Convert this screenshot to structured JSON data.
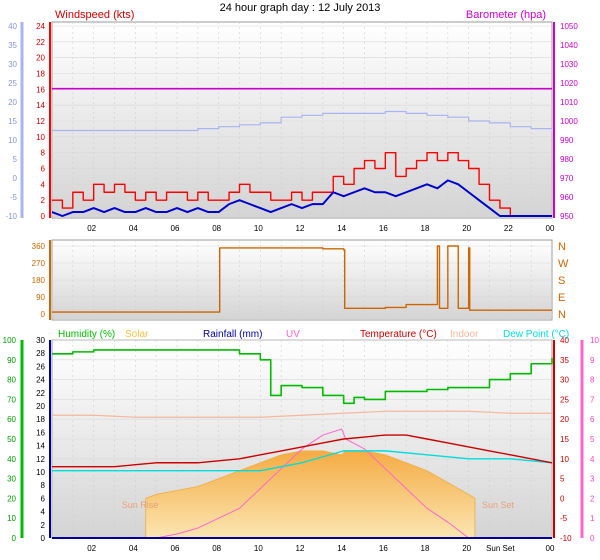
{
  "title": "24 hour graph day : 12 July 2013",
  "x_ticks": [
    "02",
    "04",
    "06",
    "08",
    "10",
    "12",
    "14",
    "16",
    "18",
    "20",
    "22",
    "00"
  ],
  "bottom_x_ticks": [
    "02",
    "04",
    "06",
    "08",
    "10",
    "12",
    "14",
    "16",
    "18",
    "20",
    "Sun Set",
    "00"
  ],
  "colors": {
    "windspeed": "#ff0000",
    "windavg": "#0000cc",
    "barometer": "#cc00cc",
    "baro_line": "#aab4ee",
    "direction": "#cc6600",
    "humidity": "#00bb00",
    "solar": "#f5c242",
    "rainfall": "#000099",
    "uv": "#ff66cc",
    "temperature": "#cc0000",
    "indoor": "#f4b89a",
    "dewpoint": "#00dddd",
    "plot_bg": "#e6e6e6"
  },
  "chart_data": [
    {
      "type": "line",
      "panel": "wind-barometer",
      "left_label": "Windspeed (kts)",
      "right_label": "Barometer (hpa)",
      "outer_left_ticks": [
        "40",
        "35",
        "30",
        "25",
        "20",
        "15",
        "10",
        "5",
        "0",
        "-5",
        "-10"
      ],
      "left_ticks": [
        "24",
        "22",
        "20",
        "18",
        "16",
        "14",
        "12",
        "10",
        "8",
        "6",
        "4",
        "2",
        "0"
      ],
      "right_ticks": [
        "1050",
        "1040",
        "1030",
        "1020",
        "1010",
        "1000",
        "990",
        "980",
        "970",
        "960",
        "950"
      ],
      "series": [
        {
          "key": "wind_gust",
          "x": [
            0,
            0.5,
            1,
            1.5,
            2,
            2.5,
            3,
            3.5,
            4,
            4.5,
            5,
            5.5,
            6,
            6.5,
            7,
            7.5,
            8,
            8.5,
            9,
            9.5,
            10,
            10.5,
            11,
            11.5,
            12,
            12.5,
            13,
            13.5,
            14,
            14.5,
            15,
            15.5,
            16,
            16.5,
            17,
            17.5,
            18,
            18.5,
            19,
            19.5,
            20,
            20.5,
            21,
            21.5,
            22,
            22.5,
            23,
            23.5,
            24
          ],
          "values": [
            2,
            1,
            3,
            2,
            4,
            3,
            4,
            3,
            2,
            3,
            2,
            3,
            3,
            2,
            3,
            2,
            2,
            3,
            4,
            3,
            3,
            2,
            2,
            3,
            2,
            3,
            3,
            5,
            4,
            6,
            7,
            6,
            8,
            5,
            6,
            7,
            8,
            7,
            8,
            7,
            6,
            4,
            2,
            1,
            0,
            0,
            0,
            0,
            0
          ]
        },
        {
          "key": "wind_avg",
          "x": [
            0,
            0.5,
            1,
            1.5,
            2,
            2.5,
            3,
            3.5,
            4,
            4.5,
            5,
            5.5,
            6,
            6.5,
            7,
            7.5,
            8,
            8.5,
            9,
            9.5,
            10,
            10.5,
            11,
            11.5,
            12,
            12.5,
            13,
            13.5,
            14,
            14.5,
            15,
            15.5,
            16,
            16.5,
            17,
            17.5,
            18,
            18.5,
            19,
            19.5,
            20,
            20.5,
            21,
            21.5,
            22,
            22.5,
            23,
            23.5,
            24
          ],
          "values": [
            0.5,
            0,
            0.5,
            0.5,
            1,
            0.5,
            1,
            0.5,
            0.5,
            1,
            0.5,
            0.5,
            1,
            0.5,
            1,
            0.5,
            0.5,
            1.5,
            2,
            1.5,
            1,
            0.5,
            1,
            1.5,
            1,
            1.5,
            1.5,
            3,
            2.5,
            3,
            3.5,
            3,
            3,
            2.5,
            3,
            3.5,
            4,
            3.5,
            4.5,
            4,
            3,
            2,
            1,
            0,
            0,
            0,
            0,
            0,
            0
          ]
        },
        {
          "key": "barometer",
          "x": [
            0,
            24
          ],
          "values": [
            1017,
            1017
          ]
        },
        {
          "key": "baro_trend",
          "x": [
            0,
            2,
            3,
            4,
            5,
            6,
            7,
            8,
            9,
            10,
            11,
            12,
            13,
            14,
            15,
            16,
            17,
            18,
            19,
            20,
            21,
            22,
            23,
            24
          ],
          "values": [
            12.5,
            12.5,
            12.5,
            12.5,
            12.5,
            12.5,
            13,
            13.5,
            14,
            14.5,
            16,
            16.5,
            17,
            17,
            17,
            17.5,
            17,
            16.5,
            16,
            15,
            14.5,
            13.5,
            13,
            12
          ]
        }
      ]
    },
    {
      "type": "line",
      "panel": "wind-direction",
      "left_ticks": [
        "360",
        "270",
        "180",
        "90",
        "0"
      ],
      "right_labels": [
        "N",
        "W",
        "S",
        "E",
        "N"
      ],
      "x": [
        0,
        1,
        2,
        3,
        4,
        5,
        6,
        7,
        8,
        8.05,
        9,
        10,
        11,
        12,
        13,
        14,
        14.05,
        15,
        16,
        17,
        18,
        18.5,
        18.6,
        19,
        19.5,
        20,
        20.05,
        21,
        22,
        23,
        24
      ],
      "values": [
        10,
        10,
        10,
        10,
        10,
        10,
        10,
        10,
        10,
        350,
        350,
        350,
        350,
        350,
        345,
        340,
        30,
        30,
        35,
        50,
        50,
        360,
        30,
        360,
        30,
        350,
        20,
        20,
        20,
        20,
        20
      ]
    },
    {
      "type": "line",
      "panel": "weather",
      "legend": [
        "Humidity (%)",
        "Solar",
        "Rainfall (mm)",
        "UV",
        "Temperature (°C)",
        "Indoor",
        "Dew Point (°C)"
      ],
      "humidity_ticks": [
        "100",
        "90",
        "80",
        "70",
        "60",
        "50",
        "40",
        "30",
        "20",
        "10",
        "0"
      ],
      "rain_ticks": [
        "30",
        "28",
        "26",
        "24",
        "22",
        "20",
        "18",
        "16",
        "14",
        "12",
        "10",
        "8",
        "6",
        "4",
        "2",
        "0"
      ],
      "temp_ticks": [
        "40",
        "35",
        "30",
        "25",
        "20",
        "15",
        "10",
        "5",
        "0",
        "-5",
        "-10"
      ],
      "uv_ticks": [
        "10",
        "9",
        "8",
        "7",
        "6",
        "5",
        "4",
        "3",
        "2",
        "1",
        "0"
      ],
      "annotations": [
        "Sun Rise",
        "Sun Set"
      ],
      "series": [
        {
          "key": "humidity",
          "x": [
            0,
            1,
            2,
            3,
            4,
            5,
            6,
            7,
            8,
            9,
            10,
            10.5,
            11,
            12,
            13,
            14,
            14.5,
            15,
            16,
            17,
            18,
            19,
            20,
            21,
            22,
            23,
            24
          ],
          "values": [
            93,
            94,
            95,
            95,
            95,
            95,
            95,
            95,
            95,
            93,
            90,
            72,
            77,
            76,
            72,
            68,
            71,
            70,
            74,
            74,
            75,
            76,
            76,
            80,
            83,
            88,
            91
          ]
        },
        {
          "key": "temperature",
          "x": [
            0,
            1,
            2,
            3,
            4,
            5,
            6,
            7,
            8,
            9,
            10,
            11,
            12,
            13,
            14,
            15,
            16,
            17,
            18,
            19,
            20,
            21,
            22,
            23,
            24
          ],
          "values": [
            8,
            8,
            8,
            8,
            8.5,
            9,
            9,
            9,
            9.5,
            10,
            11,
            12,
            13,
            14,
            15,
            15.5,
            16,
            16,
            15,
            14,
            13,
            12,
            11,
            10,
            9
          ]
        },
        {
          "key": "indoor",
          "x": [
            0,
            2,
            4,
            6,
            8,
            10,
            12,
            14,
            16,
            18,
            20,
            22,
            24
          ],
          "values": [
            21,
            21,
            20.5,
            20.5,
            20.5,
            20.5,
            21,
            21.5,
            22,
            22,
            22,
            21.5,
            21.5
          ]
        },
        {
          "key": "dewpoint",
          "x": [
            0,
            2,
            4,
            6,
            8,
            10,
            12,
            14,
            16,
            18,
            20,
            22,
            24
          ],
          "values": [
            7,
            7,
            7,
            7,
            7,
            7,
            9,
            12,
            12,
            11,
            10,
            10,
            9
          ]
        },
        {
          "key": "solar",
          "x": [
            4.5,
            5,
            6,
            7,
            8,
            9,
            10,
            11,
            12,
            13,
            13.9,
            14.1,
            15,
            16,
            17,
            18,
            19,
            20,
            20.3
          ],
          "values": [
            0,
            1,
            2,
            3,
            5,
            7,
            9,
            11,
            12,
            12,
            11,
            12,
            12,
            11,
            9,
            7,
            4,
            1,
            0
          ]
        },
        {
          "key": "uv",
          "x": [
            5,
            6,
            7,
            8,
            9,
            10,
            11,
            12,
            13,
            13.9,
            14.1,
            15,
            16,
            17,
            18,
            19,
            20
          ],
          "values": [
            0,
            0.2,
            0.5,
            1,
            1.5,
            2.5,
            3.5,
            4.5,
            5.2,
            5.5,
            5,
            4.5,
            3.5,
            2.5,
            1.5,
            0.8,
            0
          ]
        },
        {
          "key": "rainfall",
          "x": [
            0,
            24
          ],
          "values": [
            0,
            0
          ]
        }
      ]
    }
  ]
}
